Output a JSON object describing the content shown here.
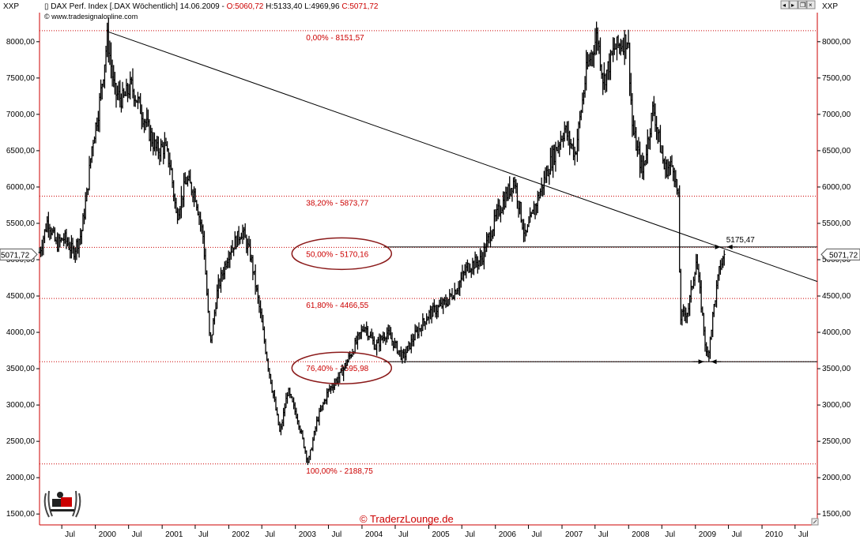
{
  "header": {
    "left_tag": "XXP",
    "right_tag": "XXP",
    "title_prefix": "DAX Perf. Index [.DAX  Wöchentlich] 14.06.2009 - ",
    "open": "O:5060,72",
    "high": "H:5133,40",
    "low": "L:4969,96",
    "close": "C:5071,72",
    "copyright": "© www.tradesignalonline.com",
    "colors": {
      "open": "#cc0000",
      "close": "#cc0000",
      "text": "#000000"
    }
  },
  "price_tags": {
    "left": "5071,72",
    "right": "5071,72",
    "value": 5071.72
  },
  "watermark": "© TraderzLounge.de",
  "logo": {
    "name": "traderzlounge-logo"
  },
  "chart_data": {
    "type": "ohlc",
    "interval": "weekly",
    "x_range": [
      "1999-03-01",
      "2010-10-31"
    ],
    "y_range": [
      1350,
      8400
    ],
    "y_ticks": [
      1500,
      2000,
      2500,
      3000,
      3500,
      4000,
      4500,
      5000,
      5500,
      6000,
      6500,
      7000,
      7500,
      8000
    ],
    "y_tick_labels": [
      "1500,00",
      "2000,00",
      "2500,00",
      "3000,00",
      "3500,00",
      "4000,00",
      "4500,00",
      "5000,00",
      "5500,00",
      "6000,00",
      "6500,00",
      "7000,00",
      "7500,00",
      "8000,00"
    ],
    "x_ticks": [
      {
        "label": "Jul",
        "date": "1999-07-01"
      },
      {
        "label": "2000",
        "date": "2000-01-01"
      },
      {
        "label": "Jul",
        "date": "2000-07-01"
      },
      {
        "label": "2001",
        "date": "2001-01-01"
      },
      {
        "label": "Jul",
        "date": "2001-07-01"
      },
      {
        "label": "2002",
        "date": "2002-01-01"
      },
      {
        "label": "Jul",
        "date": "2002-07-01"
      },
      {
        "label": "2003",
        "date": "2003-01-01"
      },
      {
        "label": "Jul",
        "date": "2003-07-01"
      },
      {
        "label": "2004",
        "date": "2004-01-01"
      },
      {
        "label": "Jul",
        "date": "2004-07-01"
      },
      {
        "label": "2005",
        "date": "2005-01-01"
      },
      {
        "label": "Jul",
        "date": "2005-07-01"
      },
      {
        "label": "2006",
        "date": "2006-01-01"
      },
      {
        "label": "Jul",
        "date": "2006-07-01"
      },
      {
        "label": "2007",
        "date": "2007-01-01"
      },
      {
        "label": "Jul",
        "date": "2007-07-01"
      },
      {
        "label": "2008",
        "date": "2008-01-01"
      },
      {
        "label": "Jul",
        "date": "2008-07-01"
      },
      {
        "label": "2009",
        "date": "2009-01-01"
      },
      {
        "label": "Jul",
        "date": "2009-07-01"
      },
      {
        "label": "2010",
        "date": "2010-01-01"
      },
      {
        "label": "Jul",
        "date": "2010-07-01"
      }
    ],
    "price_path": [
      [
        "1999-03-01",
        5100
      ],
      [
        "1999-04-15",
        5550
      ],
      [
        "1999-06-01",
        5200
      ],
      [
        "1999-07-15",
        5300
      ],
      [
        "1999-09-01",
        5100
      ],
      [
        "1999-10-15",
        5350
      ],
      [
        "1999-11-15",
        5900
      ],
      [
        "1999-12-15",
        6600
      ],
      [
        "2000-01-15",
        7000
      ],
      [
        "2000-02-15",
        7600
      ],
      [
        "2000-03-07",
        8065
      ],
      [
        "2000-04-15",
        7300
      ],
      [
        "2000-06-01",
        7200
      ],
      [
        "2000-07-15",
        7400
      ],
      [
        "2000-09-01",
        7100
      ],
      [
        "2000-10-15",
        6800
      ],
      [
        "2000-12-01",
        6500
      ],
      [
        "2001-01-15",
        6550
      ],
      [
        "2001-02-15",
        6300
      ],
      [
        "2001-03-20",
        5600
      ],
      [
        "2001-05-15",
        6100
      ],
      [
        "2001-07-01",
        5900
      ],
      [
        "2001-08-15",
        5300
      ],
      [
        "2001-09-21",
        3800
      ],
      [
        "2001-11-01",
        4600
      ],
      [
        "2002-01-01",
        5100
      ],
      [
        "2002-03-15",
        5400
      ],
      [
        "2002-05-01",
        5050
      ],
      [
        "2002-06-20",
        4300
      ],
      [
        "2002-08-01",
        3600
      ],
      [
        "2002-10-09",
        2600
      ],
      [
        "2002-11-20",
        3200
      ],
      [
        "2003-01-15",
        2800
      ],
      [
        "2003-03-12",
        2200
      ],
      [
        "2003-05-01",
        2800
      ],
      [
        "2003-07-01",
        3200
      ],
      [
        "2003-09-01",
        3400
      ],
      [
        "2003-11-01",
        3700
      ],
      [
        "2004-01-15",
        4100
      ],
      [
        "2004-03-15",
        3800
      ],
      [
        "2004-05-15",
        4000
      ],
      [
        "2004-08-13",
        3650
      ],
      [
        "2004-10-15",
        3950
      ],
      [
        "2005-01-01",
        4250
      ],
      [
        "2005-04-01",
        4400
      ],
      [
        "2005-06-01",
        4600
      ],
      [
        "2005-08-01",
        4900
      ],
      [
        "2005-10-15",
        5000
      ],
      [
        "2006-01-15",
        5650
      ],
      [
        "2006-04-15",
        6100
      ],
      [
        "2006-06-13",
        5300
      ],
      [
        "2006-08-15",
        5800
      ],
      [
        "2006-11-01",
        6350
      ],
      [
        "2007-01-15",
        6800
      ],
      [
        "2007-03-14",
        6450
      ],
      [
        "2007-05-15",
        7600
      ],
      [
        "2007-07-13",
        8100
      ],
      [
        "2007-08-16",
        7450
      ],
      [
        "2007-10-15",
        7900
      ],
      [
        "2007-12-28",
        8050
      ],
      [
        "2008-01-22",
        6800
      ],
      [
        "2008-03-17",
        6200
      ],
      [
        "2008-05-15",
        7100
      ],
      [
        "2008-07-15",
        6250
      ],
      [
        "2008-09-01",
        6300
      ],
      [
        "2008-09-30",
        5800
      ],
      [
        "2008-10-10",
        4200
      ],
      [
        "2008-11-21",
        4300
      ],
      [
        "2009-01-06",
        5000
      ],
      [
        "2009-02-10",
        4200
      ],
      [
        "2009-03-06",
        3588
      ],
      [
        "2009-04-15",
        4400
      ],
      [
        "2009-05-15",
        4900
      ],
      [
        "2009-06-14",
        5071.72
      ]
    ],
    "trendline": {
      "from": [
        "2000-03-07",
        8140
      ],
      "to": [
        "2010-10-31",
        4700
      ]
    },
    "fibonacci": {
      "high": 8151.57,
      "low": 2188.75,
      "levels": [
        {
          "label": "0,00% - 8151,57",
          "value": 8151.57
        },
        {
          "label": "38,20% - 5873,77",
          "value": 5873.77
        },
        {
          "label": "50,00% - 5170,16",
          "value": 5170.16
        },
        {
          "label": "61,80% - 4466,55",
          "value": 4466.55
        },
        {
          "label": "76,40% - 3595,98",
          "value": 3595.98
        },
        {
          "label": "100,00% - 2188,75",
          "value": 2188.75
        }
      ],
      "label_date": "2003-03-01",
      "line_color": "#cc0000"
    },
    "horizontal_lines": [
      {
        "value": 5175.47,
        "from": "2004-05-01",
        "to": "2010-10-31"
      },
      {
        "value": 3595.98,
        "from": "2004-05-01",
        "to": "2010-10-31"
      }
    ],
    "annotations": [
      {
        "label": "5175,47",
        "date": "2009-06-10",
        "value": 5175.47
      }
    ],
    "highlight_ellipses": [
      {
        "level": "50,00% - 5170,16"
      },
      {
        "level": "76,40% - 3595,98"
      }
    ],
    "colors": {
      "bars": "#000000",
      "fib": "#cc0000",
      "ellipse": "#8b1a1a",
      "axis": "#000000",
      "grid": "#cc0000"
    }
  }
}
